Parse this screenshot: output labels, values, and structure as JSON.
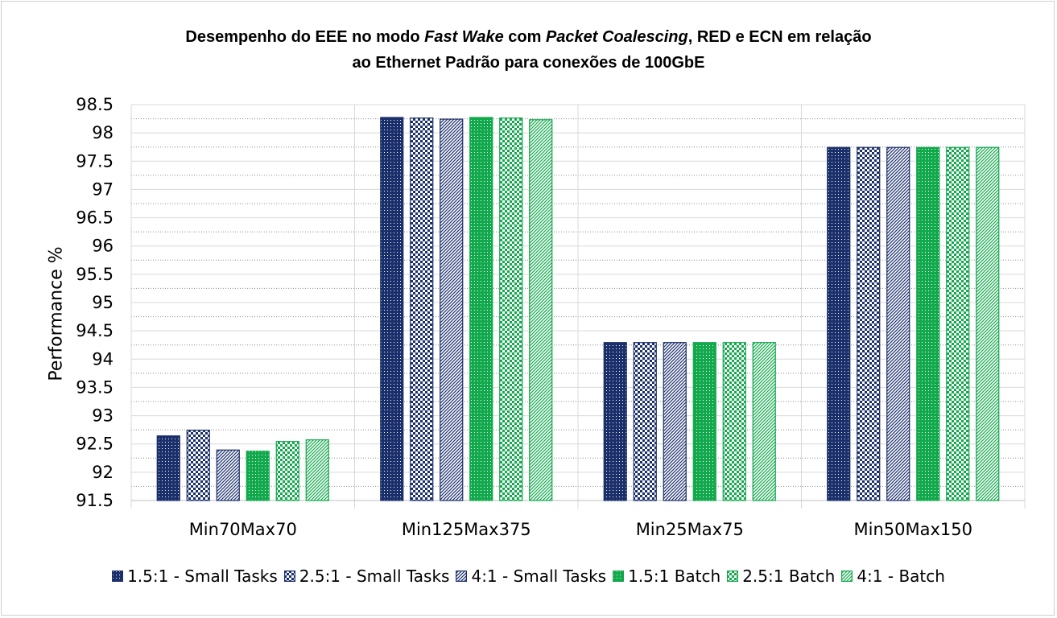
{
  "chart_data": {
    "type": "bar",
    "title_line1_pre": "Desempenho do EEE no modo ",
    "title_line1_em1": "Fast Wake",
    "title_line1_mid": " com ",
    "title_line1_em2": "Packet Coalescing",
    "title_line1_post": ", RED e ECN em relação",
    "title_line2": "ao Ethernet Padrão para conexões de 100GbE",
    "ylabel": "Performance %",
    "xlabel": "",
    "ylim": [
      91.5,
      98.5
    ],
    "yticks": [
      "91.5",
      "92",
      "92.5",
      "93",
      "93.5",
      "94",
      "94.5",
      "95",
      "95.5",
      "96",
      "96.5",
      "97",
      "97.5",
      "98",
      "98.5"
    ],
    "grid": true,
    "legend_position": "bottom",
    "categories": [
      "Min70Max70",
      "Min125Max375",
      "Min25Max75",
      "Min50Max150"
    ],
    "series": [
      {
        "name": "1.5:1 - Small Tasks",
        "values": [
          92.65,
          98.28,
          94.3,
          97.75
        ],
        "color": "#1b2f6b",
        "pattern": "dots"
      },
      {
        "name": "2.5:1 - Small Tasks",
        "values": [
          92.75,
          98.27,
          94.3,
          97.75
        ],
        "color": "#1b2f6b",
        "pattern": "checker"
      },
      {
        "name": "4:1 - Small Tasks",
        "values": [
          92.4,
          98.25,
          94.3,
          97.75
        ],
        "color": "#1b2f6b",
        "pattern": "diagonal"
      },
      {
        "name": "1.5:1 Batch",
        "values": [
          92.38,
          98.28,
          94.3,
          97.75
        ],
        "color": "#12a84c",
        "pattern": "dots"
      },
      {
        "name": "2.5:1 Batch",
        "values": [
          92.55,
          98.27,
          94.3,
          97.75
        ],
        "color": "#12a84c",
        "pattern": "checker"
      },
      {
        "name": "4:1 - Batch",
        "values": [
          92.58,
          98.24,
          94.3,
          97.75
        ],
        "color": "#12a84c",
        "pattern": "diagonal"
      }
    ]
  }
}
